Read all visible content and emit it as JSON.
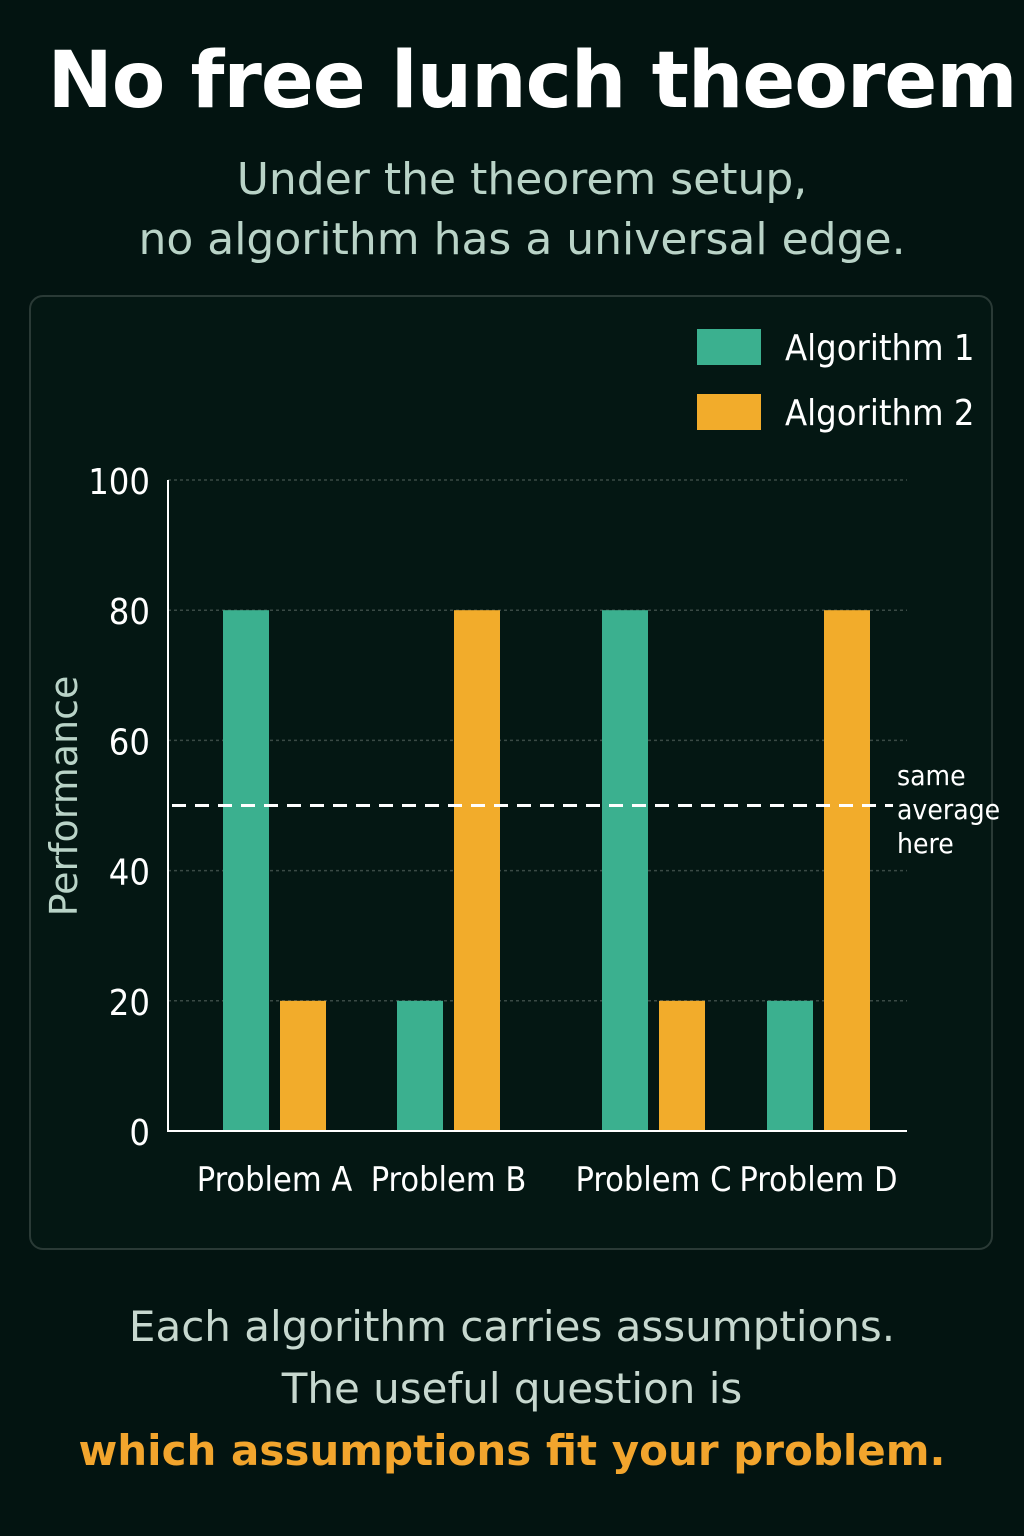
{
  "header": {
    "title": "No free lunch theorem",
    "subtitle_line1": "Under the theorem setup,",
    "subtitle_line2": "no algorithm has a universal edge."
  },
  "footer": {
    "line1": "Each algorithm carries assumptions.",
    "line2": "The useful question is",
    "line3": "which assumptions fit your problem."
  },
  "colors": {
    "algorithm1": "#3bb08f",
    "algorithm2": "#f2ac2b",
    "background": "#031411",
    "highlight": "#f2a52d"
  },
  "chart_data": {
    "type": "bar",
    "categories": [
      "Problem A",
      "Problem B",
      "Problem C",
      "Problem D"
    ],
    "series": [
      {
        "name": "Algorithm 1",
        "values": [
          80,
          20,
          80,
          20
        ]
      },
      {
        "name": "Algorithm 2",
        "values": [
          20,
          80,
          20,
          80
        ]
      }
    ],
    "ylabel": "Performance",
    "xlabel": "",
    "ylim": [
      0,
      100
    ],
    "yticks": [
      0,
      20,
      40,
      60,
      80,
      100
    ],
    "grid": true,
    "legend_position": "top-right",
    "reference_line": {
      "value": 50,
      "style": "dashed",
      "label_lines": [
        "same",
        "average",
        "here"
      ]
    }
  }
}
